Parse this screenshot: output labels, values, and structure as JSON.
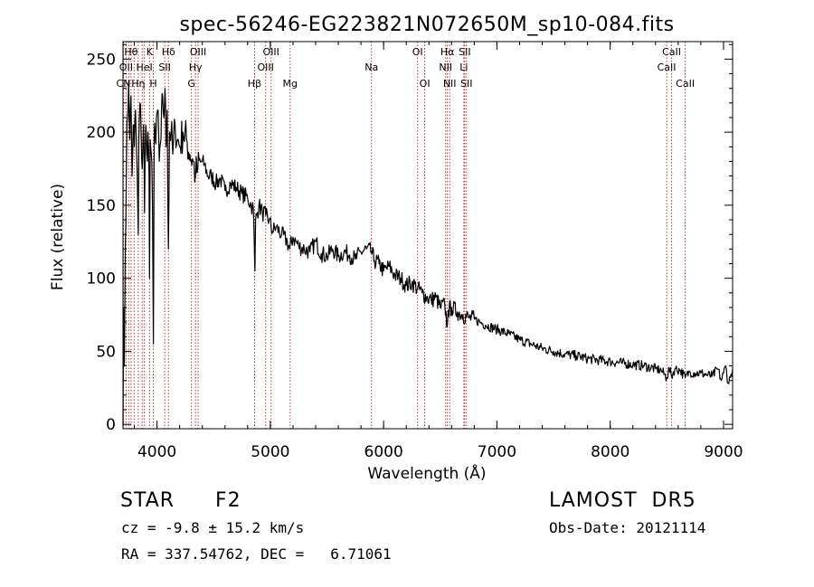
{
  "chart_data": {
    "type": "line",
    "title": "spec-56246-EG223821N072650M_sp10-084.fits",
    "xlabel": "Wavelength (Å)",
    "ylabel": "Flux (relative)",
    "xlim": [
      3700,
      9080
    ],
    "ylim": [
      -3,
      262
    ],
    "x_ticks": [
      4000,
      5000,
      6000,
      7000,
      8000,
      9000
    ],
    "y_ticks": [
      0,
      50,
      100,
      150,
      200,
      250
    ],
    "grid": false,
    "series": [
      {
        "x": [
          3700,
          3705,
          3712,
          3720,
          3730,
          3740,
          3750,
          3760,
          3770,
          3780,
          3790,
          3800,
          3810,
          3820,
          3830,
          3835,
          3840,
          3850,
          3860,
          3870,
          3880,
          3885,
          3890,
          3900,
          3910,
          3920,
          3930,
          3934,
          3940,
          3950,
          3960,
          3968,
          3975,
          3985,
          3995,
          4005,
          4020,
          4035,
          4050,
          4060,
          4070,
          4080,
          4090,
          4101,
          4110,
          4125,
          4140,
          4160,
          4180,
          4200,
          4230,
          4260,
          4290,
          4320,
          4340,
          4360,
          4390,
          4420,
          4450,
          4480,
          4520,
          4560,
          4600,
          4650,
          4700,
          4750,
          4800,
          4830,
          4850,
          4861,
          4865,
          4870,
          4885,
          4900,
          4930,
          4960,
          4990,
          5020,
          5050,
          5100,
          5150,
          5172,
          5200,
          5250,
          5300,
          5350,
          5400,
          5450,
          5500,
          5550,
          5600,
          5650,
          5700,
          5750,
          5800,
          5850,
          5893,
          5920,
          5960,
          6000,
          6050,
          6100,
          6150,
          6200,
          6250,
          6300,
          6340,
          6380,
          6420,
          6460,
          6500,
          6540,
          6562,
          6570,
          6600,
          6650,
          6700,
          6750,
          6800,
          6850,
          6900,
          7000,
          7100,
          7200,
          7300,
          7400,
          7500,
          7600,
          7700,
          7800,
          7900,
          8000,
          8100,
          8200,
          8300,
          8400,
          8450,
          8498,
          8520,
          8542,
          8570,
          8620,
          8662,
          8700,
          8750,
          8800,
          8850,
          8900,
          8950,
          8980,
          9000,
          9020,
          9040,
          9060,
          9080
        ],
        "y": [
          0,
          80,
          40,
          120,
          180,
          210,
          235,
          195,
          225,
          170,
          205,
          190,
          215,
          185,
          150,
          130,
          195,
          220,
          200,
          175,
          205,
          190,
          145,
          205,
          185,
          200,
          170,
          100,
          195,
          185,
          150,
          55,
          200,
          195,
          210,
          215,
          180,
          195,
          225,
          210,
          230,
          190,
          215,
          120,
          200,
          200,
          185,
          205,
          195,
          190,
          200,
          195,
          185,
          180,
          170,
          175,
          180,
          178,
          170,
          170,
          165,
          168,
          160,
          165,
          162,
          158,
          155,
          150,
          148,
          115,
          105,
          140,
          145,
          150,
          145,
          143,
          140,
          132,
          135,
          130,
          125,
          120,
          128,
          122,
          120,
          118,
          125,
          117,
          115,
          120,
          115,
          118,
          116,
          113,
          118,
          120,
          118,
          112,
          110,
          105,
          108,
          102,
          100,
          95,
          97,
          93,
          90,
          87,
          85,
          87,
          80,
          82,
          67,
          78,
          80,
          77,
          75,
          73,
          72,
          70,
          68,
          65,
          62,
          58,
          55,
          52,
          50,
          48,
          47,
          45,
          44,
          43,
          42,
          41,
          40,
          38,
          37,
          32,
          38,
          33,
          38,
          37,
          32,
          36,
          35,
          35,
          34,
          33,
          38,
          30,
          35,
          40,
          28,
          32,
          38
        ]
      }
    ],
    "lines": [
      {
        "x": 3704,
        "labels": [
          "",
          "",
          "CN"
        ]
      },
      {
        "x": 3727,
        "labels": [
          "",
          "OII",
          ""
        ]
      },
      {
        "x": 3750,
        "labels": [
          "",
          "",
          ""
        ]
      },
      {
        "x": 3771,
        "labels": [
          "Hθ",
          "",
          ""
        ]
      },
      {
        "x": 3798,
        "labels": [
          "",
          "",
          ""
        ]
      },
      {
        "x": 3835,
        "labels": [
          "",
          "",
          "Hη"
        ]
      },
      {
        "x": 3869,
        "labels": [
          "",
          "",
          ""
        ]
      },
      {
        "x": 3889,
        "labels": [
          "",
          "HeI",
          ""
        ]
      },
      {
        "x": 3934,
        "labels": [
          "K",
          "",
          ""
        ]
      },
      {
        "x": 3968,
        "labels": [
          "",
          "",
          "H"
        ]
      },
      {
        "x": 4068,
        "labels": [
          "",
          "SII",
          ""
        ]
      },
      {
        "x": 4101,
        "labels": [
          "Hδ",
          "",
          ""
        ]
      },
      {
        "x": 4304,
        "labels": [
          "",
          "",
          "G"
        ]
      },
      {
        "x": 4340,
        "labels": [
          "",
          "Hγ",
          ""
        ]
      },
      {
        "x": 4363,
        "labels": [
          "OIII",
          "",
          ""
        ]
      },
      {
        "x": 4861,
        "labels": [
          "",
          "",
          "Hβ"
        ]
      },
      {
        "x": 4959,
        "labels": [
          "",
          "OIII",
          ""
        ]
      },
      {
        "x": 5007,
        "labels": [
          "OIII",
          "",
          ""
        ]
      },
      {
        "x": 5175,
        "labels": [
          "",
          "",
          "Mg"
        ]
      },
      {
        "x": 5893,
        "labels": [
          "",
          "Na",
          ""
        ]
      },
      {
        "x": 6300,
        "labels": [
          "OI",
          "",
          ""
        ]
      },
      {
        "x": 6363,
        "labels": [
          "",
          "",
          "OI"
        ]
      },
      {
        "x": 6548,
        "labels": [
          "",
          "NII",
          ""
        ]
      },
      {
        "x": 6563,
        "labels": [
          "Hα",
          "",
          ""
        ]
      },
      {
        "x": 6583,
        "labels": [
          "",
          "",
          "NII"
        ]
      },
      {
        "x": 6708,
        "labels": [
          "",
          "Li",
          ""
        ]
      },
      {
        "x": 6716,
        "labels": [
          "SII",
          "",
          ""
        ]
      },
      {
        "x": 6731,
        "labels": [
          "",
          "",
          "SII"
        ]
      },
      {
        "x": 8498,
        "labels": [
          "",
          "CaII",
          ""
        ]
      },
      {
        "x": 8542,
        "labels": [
          "CaII",
          "",
          ""
        ]
      },
      {
        "x": 8662,
        "labels": [
          "",
          "",
          "CaII"
        ]
      }
    ]
  },
  "info": {
    "object_class": "STAR",
    "subclass": "F2",
    "survey": "LAMOST  DR5",
    "cz": "cz = -9.8 ± 15.2 km/s",
    "obs_date": "Obs-Date: 20121114",
    "coords": "RA = 337.54762, DEC =   6.71061"
  }
}
